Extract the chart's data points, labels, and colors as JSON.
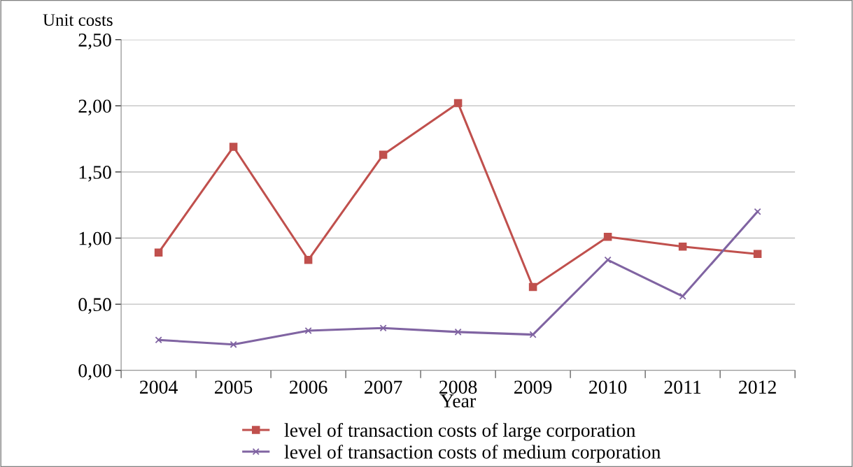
{
  "chart_data": {
    "type": "line",
    "ylabel": "Unit costs",
    "xlabel": "Year",
    "categories": [
      "2004",
      "2005",
      "2006",
      "2007",
      "2008",
      "2009",
      "2010",
      "2011",
      "2012"
    ],
    "series": [
      {
        "name": "level of transaction costs of large corporation",
        "color": "#c0504d",
        "marker": "square",
        "values": [
          0.89,
          1.69,
          0.835,
          1.63,
          2.02,
          0.63,
          1.01,
          0.935,
          0.88
        ]
      },
      {
        "name": "level of transaction costs of medium corporation",
        "color": "#8064a2",
        "marker": "cross",
        "values": [
          0.23,
          0.195,
          0.3,
          0.32,
          0.29,
          0.27,
          0.835,
          0.56,
          1.2
        ]
      }
    ],
    "ylim": [
      0,
      2.5
    ],
    "yticks": [
      {
        "value": 0,
        "label": "0,00"
      },
      {
        "value": 0.5,
        "label": "0,50"
      },
      {
        "value": 1,
        "label": "1,00"
      },
      {
        "value": 1.5,
        "label": "1,50"
      },
      {
        "value": 2,
        "label": "2,00"
      },
      {
        "value": 2.5,
        "label": "2,50"
      }
    ],
    "grid": "y",
    "legend": "bottom"
  }
}
